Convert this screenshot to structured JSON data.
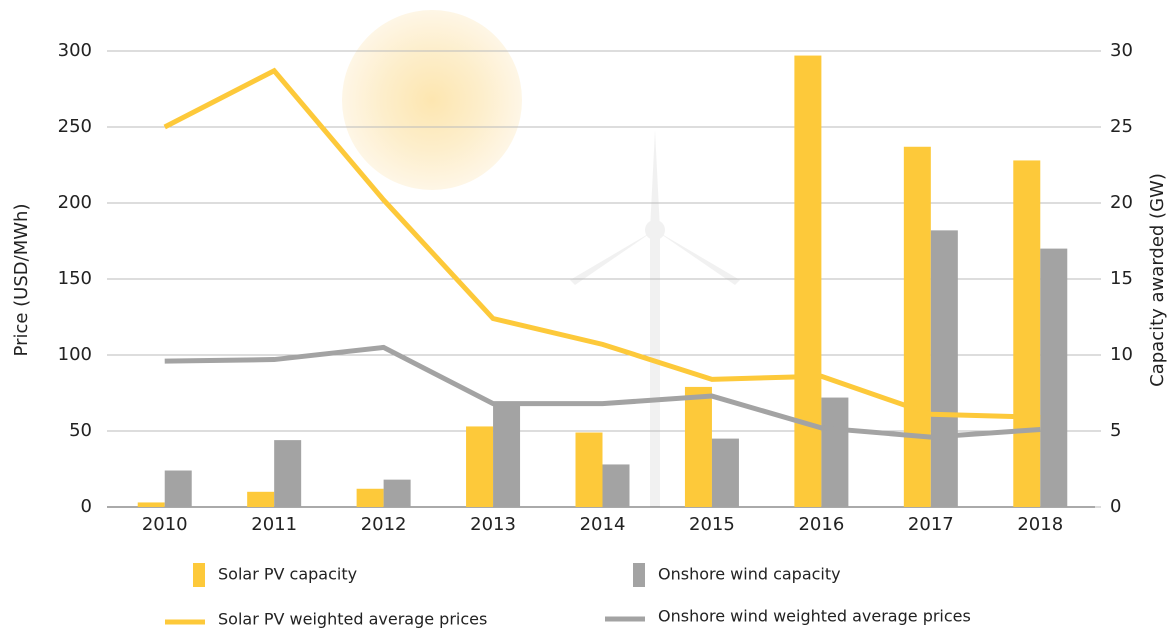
{
  "chart_data": {
    "type": "combo",
    "y_label": "Price (USD/MWh)",
    "y2_label": "Capacity awarded (GW)",
    "categories": [
      "2010",
      "2011",
      "2012",
      "2013",
      "2014",
      "2015",
      "2016",
      "2017",
      "2018"
    ],
    "series": [
      {
        "name": "Solar PV capacity",
        "type": "bar",
        "axis": "y2",
        "color": "#fdc93a",
        "values": [
          0.3,
          1.0,
          1.2,
          5.3,
          4.9,
          7.9,
          29.7,
          23.7,
          22.8
        ]
      },
      {
        "name": "Onshore wind capacity",
        "type": "bar",
        "axis": "y2",
        "color": "#a3a3a3",
        "values": [
          2.4,
          4.4,
          1.8,
          6.9,
          2.8,
          4.5,
          7.2,
          18.2,
          17.0
        ]
      },
      {
        "name": "Solar PV weighted average prices",
        "type": "line",
        "axis": "y",
        "color": "#fdc93a",
        "values": [
          250,
          287,
          202,
          124,
          107,
          84,
          86,
          61,
          59
        ]
      },
      {
        "name": "Onshore wind weighted average prices",
        "type": "line",
        "axis": "y",
        "color": "#a3a3a3",
        "values": [
          96,
          97,
          105,
          68,
          68,
          73,
          52,
          46,
          51
        ]
      }
    ],
    "ylim": [
      0,
      300
    ],
    "yticks": [
      0,
      50,
      100,
      150,
      200,
      250,
      300
    ],
    "y2lim": [
      0,
      30
    ],
    "y2ticks": [
      0,
      5,
      10,
      15,
      20,
      25,
      30
    ],
    "grid": true
  }
}
